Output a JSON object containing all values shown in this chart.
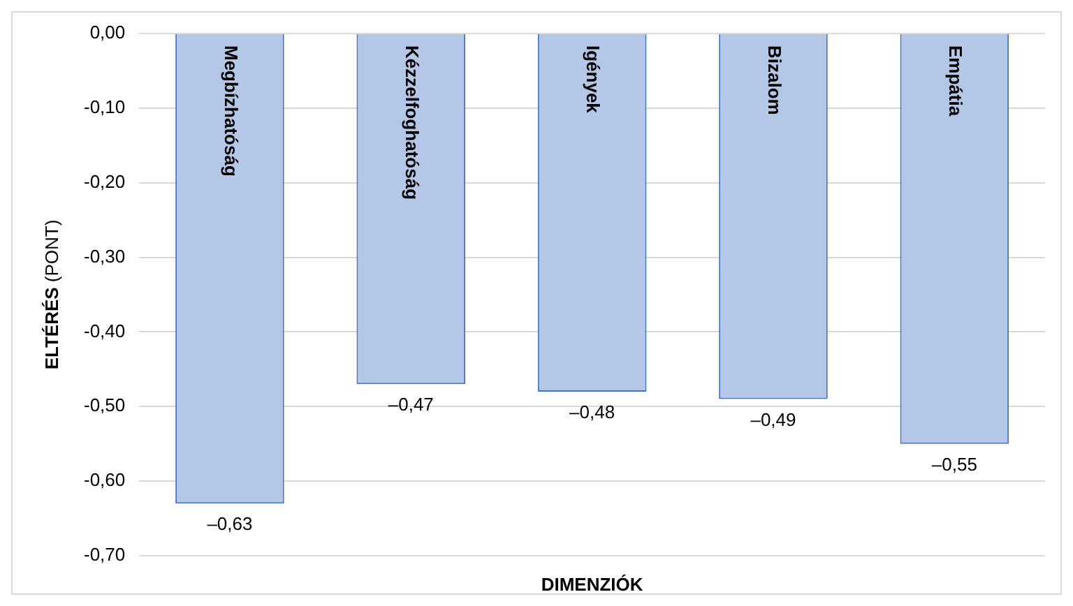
{
  "chart_data": {
    "type": "bar",
    "xlabel": "DIMENZIÓK",
    "ylabel": "ELTÉRÉS (PONT)",
    "categories": [
      "Megbízhatóság",
      "Kézzelfoghatóság",
      "Igények",
      "Bizalom",
      "Empátia"
    ],
    "values": [
      -0.63,
      -0.47,
      -0.48,
      -0.49,
      -0.55
    ],
    "value_labels": [
      "–0,63",
      "–0,47",
      "–0,48",
      "–0,49",
      "–0,55"
    ],
    "color": "#b4c7e7",
    "ylim": [
      -0.7,
      0
    ],
    "yticks": [
      {
        "value": 0,
        "label": "0,00"
      },
      {
        "value": -0.1,
        "label": "-0,10"
      },
      {
        "value": -0.2,
        "label": "-0,20"
      },
      {
        "value": -0.3,
        "label": "-0,30"
      },
      {
        "value": -0.4,
        "label": "-0,40"
      },
      {
        "value": -0.5,
        "label": "-0,50"
      },
      {
        "value": -0.6,
        "label": "-0,60"
      },
      {
        "value": -0.7,
        "label": "-0,70"
      }
    ],
    "grid": "y",
    "legend": false
  }
}
